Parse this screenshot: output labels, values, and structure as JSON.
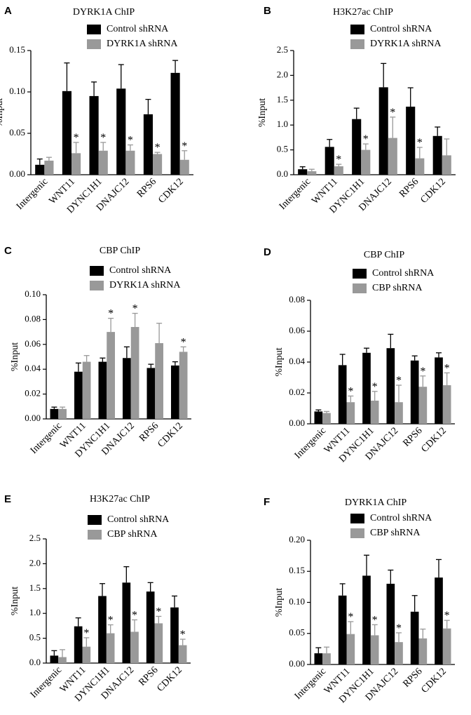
{
  "chart_data": [
    {
      "panel_letter": "A",
      "type": "bar",
      "title": "DYRK1A ChIP",
      "ylabel": "%Input",
      "xlabel": "",
      "ylim": [
        0,
        0.15
      ],
      "yticks": [
        "0.00",
        "0.05",
        "0.10",
        "0.15"
      ],
      "categories": [
        "Intergenic",
        "WNT11",
        "DYNC1H1",
        "DNAJC12",
        "RPS6",
        "CDK12"
      ],
      "series": [
        {
          "name": "Control shRNA",
          "color": "#000000",
          "values": [
            0.012,
            0.101,
            0.095,
            0.104,
            0.073,
            0.123
          ],
          "errors": [
            0.007,
            0.034,
            0.017,
            0.029,
            0.018,
            0.015
          ]
        },
        {
          "name": "DYRK1A shRNA",
          "color": "#999999",
          "values": [
            0.017,
            0.026,
            0.029,
            0.029,
            0.025,
            0.018
          ],
          "errors": [
            0.004,
            0.013,
            0.01,
            0.007,
            0.002,
            0.011
          ]
        }
      ],
      "significance_marks": [
        "",
        "*",
        "*",
        "*",
        "*",
        "*"
      ],
      "grid": false,
      "legend": "top-center"
    },
    {
      "panel_letter": "B",
      "type": "bar",
      "title": "H3K27ac ChIP",
      "ylabel": "%Input",
      "xlabel": "",
      "ylim": [
        0,
        2.5
      ],
      "yticks": [
        "0.0",
        "0.5",
        "1.0",
        "1.5",
        "2.0",
        "2.5"
      ],
      "categories": [
        "Intergenic",
        "WNT11",
        "DYNC1H1",
        "DNAJC12",
        "RPS6",
        "CDK12"
      ],
      "series": [
        {
          "name": "Control shRNA",
          "color": "#000000",
          "values": [
            0.11,
            0.56,
            1.12,
            1.76,
            1.37,
            0.78
          ],
          "errors": [
            0.05,
            0.15,
            0.22,
            0.48,
            0.38,
            0.18
          ]
        },
        {
          "name": "DYRK1A shRNA",
          "color": "#999999",
          "values": [
            0.07,
            0.17,
            0.5,
            0.74,
            0.33,
            0.39
          ],
          "errors": [
            0.04,
            0.04,
            0.12,
            0.42,
            0.22,
            0.33
          ]
        }
      ],
      "significance_marks": [
        "",
        "*",
        "*",
        "*",
        "*",
        ""
      ],
      "grid": false,
      "legend": "top-center"
    },
    {
      "panel_letter": "C",
      "type": "bar",
      "title": "CBP ChIP",
      "ylabel": "%Input",
      "xlabel": "",
      "ylim": [
        0,
        0.1
      ],
      "yticks": [
        "0.00",
        "0.02",
        "0.04",
        "0.06",
        "0.08",
        "0.10"
      ],
      "categories": [
        "Intergenic",
        "WNT11",
        "DYNC1H1",
        "DNAJC12",
        "RPS6",
        "CDK12"
      ],
      "series": [
        {
          "name": "Control shRNA",
          "color": "#000000",
          "values": [
            0.008,
            0.038,
            0.046,
            0.049,
            0.041,
            0.043
          ],
          "errors": [
            0.0015,
            0.007,
            0.003,
            0.009,
            0.003,
            0.003
          ]
        },
        {
          "name": "DYRK1A shRNA",
          "color": "#999999",
          "values": [
            0.008,
            0.046,
            0.07,
            0.074,
            0.061,
            0.054
          ],
          "errors": [
            0.0015,
            0.005,
            0.011,
            0.011,
            0.016,
            0.004
          ]
        }
      ],
      "significance_marks": [
        "",
        "",
        "*",
        "*",
        "",
        "*"
      ],
      "grid": false,
      "legend": "top-center"
    },
    {
      "panel_letter": "D",
      "type": "bar",
      "title": "CBP ChIP",
      "ylabel": "%Input",
      "xlabel": "",
      "ylim": [
        0,
        0.08
      ],
      "yticks": [
        "0.00",
        "0.02",
        "0.04",
        "0.06",
        "0.08"
      ],
      "categories": [
        "Intergenic",
        "WNT11",
        "DYNC1H1",
        "DNAJC12",
        "RPS6",
        "CDK12"
      ],
      "series": [
        {
          "name": "Control shRNA",
          "color": "#000000",
          "values": [
            0.008,
            0.038,
            0.046,
            0.049,
            0.041,
            0.043
          ],
          "errors": [
            0.001,
            0.007,
            0.003,
            0.009,
            0.003,
            0.003
          ]
        },
        {
          "name": "CBP shRNA",
          "color": "#999999",
          "values": [
            0.007,
            0.014,
            0.015,
            0.014,
            0.024,
            0.025
          ],
          "errors": [
            0.001,
            0.004,
            0.006,
            0.011,
            0.007,
            0.008
          ]
        }
      ],
      "significance_marks": [
        "",
        "*",
        "*",
        "*",
        "*",
        "*"
      ],
      "grid": false,
      "legend": "top-center"
    },
    {
      "panel_letter": "E",
      "type": "bar",
      "title": "H3K27ac ChIP",
      "ylabel": "%Input",
      "xlabel": "",
      "ylim": [
        0,
        2.5
      ],
      "yticks": [
        "0.0",
        "0.5",
        "1.0",
        "1.5",
        "2.0",
        "2.5"
      ],
      "categories": [
        "Intergenic",
        "WNT11",
        "DYNC1H1",
        "DNAJC12",
        "RPS6",
        "CDK12"
      ],
      "series": [
        {
          "name": "Control shRNA",
          "color": "#000000",
          "values": [
            0.15,
            0.74,
            1.35,
            1.62,
            1.44,
            1.12
          ],
          "errors": [
            0.1,
            0.17,
            0.25,
            0.32,
            0.18,
            0.23
          ]
        },
        {
          "name": "CBP shRNA",
          "color": "#999999",
          "values": [
            0.12,
            0.33,
            0.6,
            0.63,
            0.8,
            0.36
          ],
          "errors": [
            0.15,
            0.18,
            0.17,
            0.24,
            0.14,
            0.12
          ]
        }
      ],
      "significance_marks": [
        "",
        "*",
        "*",
        "*",
        "*",
        "*"
      ],
      "grid": false,
      "legend": "top-center"
    },
    {
      "panel_letter": "F",
      "type": "bar",
      "title": "DYRK1A ChIP",
      "ylabel": "%Input",
      "xlabel": "",
      "ylim": [
        0,
        0.2
      ],
      "yticks": [
        "0.00",
        "0.05",
        "0.10",
        "0.15",
        "0.20"
      ],
      "categories": [
        "Intergenic",
        "WNT11",
        "DYNC1H1",
        "DNAJC12",
        "RPS6",
        "CDK12"
      ],
      "series": [
        {
          "name": "Control shRNA",
          "color": "#000000",
          "values": [
            0.018,
            0.111,
            0.143,
            0.13,
            0.085,
            0.14
          ],
          "errors": [
            0.009,
            0.019,
            0.033,
            0.022,
            0.026,
            0.029
          ]
        },
        {
          "name": "CBP shRNA",
          "color": "#999999",
          "values": [
            0.018,
            0.049,
            0.047,
            0.036,
            0.042,
            0.058
          ],
          "errors": [
            0.01,
            0.02,
            0.017,
            0.015,
            0.015,
            0.013
          ]
        }
      ],
      "significance_marks": [
        "",
        "*",
        "*",
        "*",
        "",
        "*"
      ],
      "grid": false,
      "legend": "top-center"
    }
  ]
}
